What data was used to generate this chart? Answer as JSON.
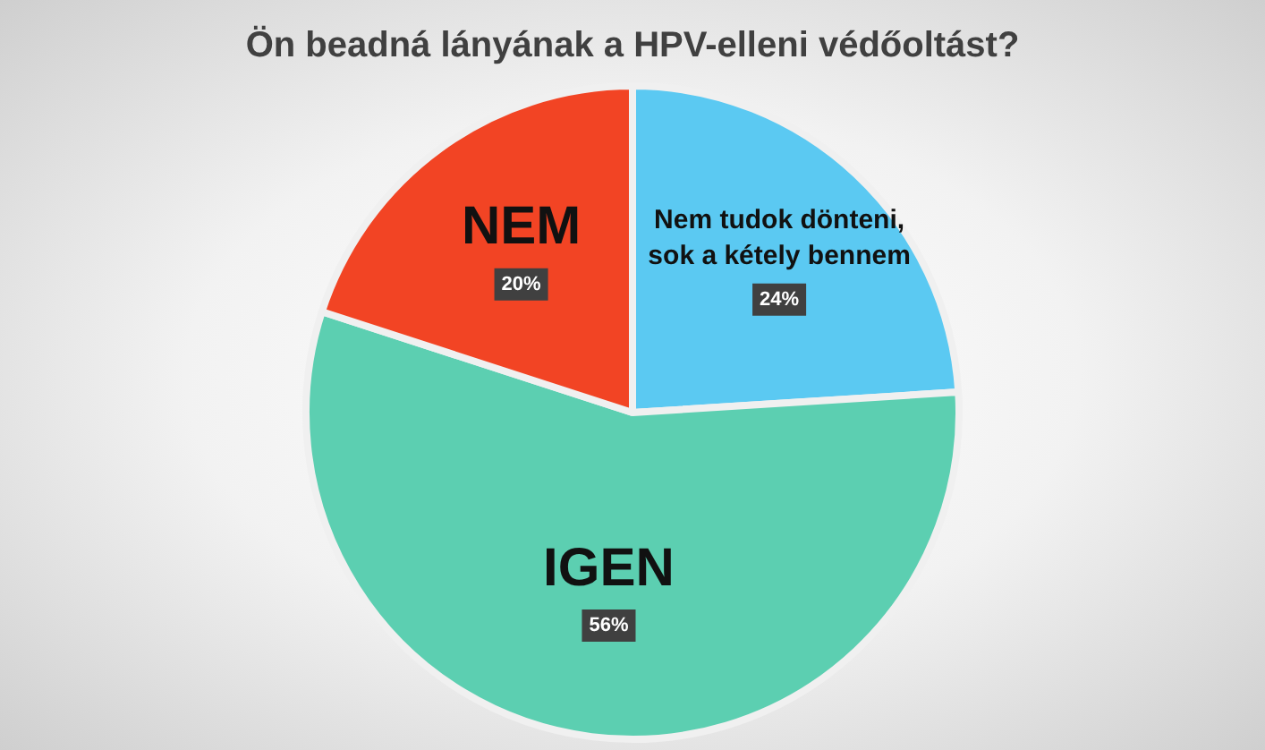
{
  "chart_data": {
    "type": "pie",
    "title": "Ön beadná lányának a HPV-elleni védőoltást?",
    "categories": [
      "Nem tudok dönteni, sok a kétely bennem",
      "IGEN",
      "NEM"
    ],
    "values": [
      24,
      56,
      20
    ],
    "colors": [
      "#5bc9f2",
      "#5ccfb1",
      "#f24424"
    ],
    "value_labels": [
      "24%",
      "56%",
      "20%"
    ],
    "legend": false
  }
}
